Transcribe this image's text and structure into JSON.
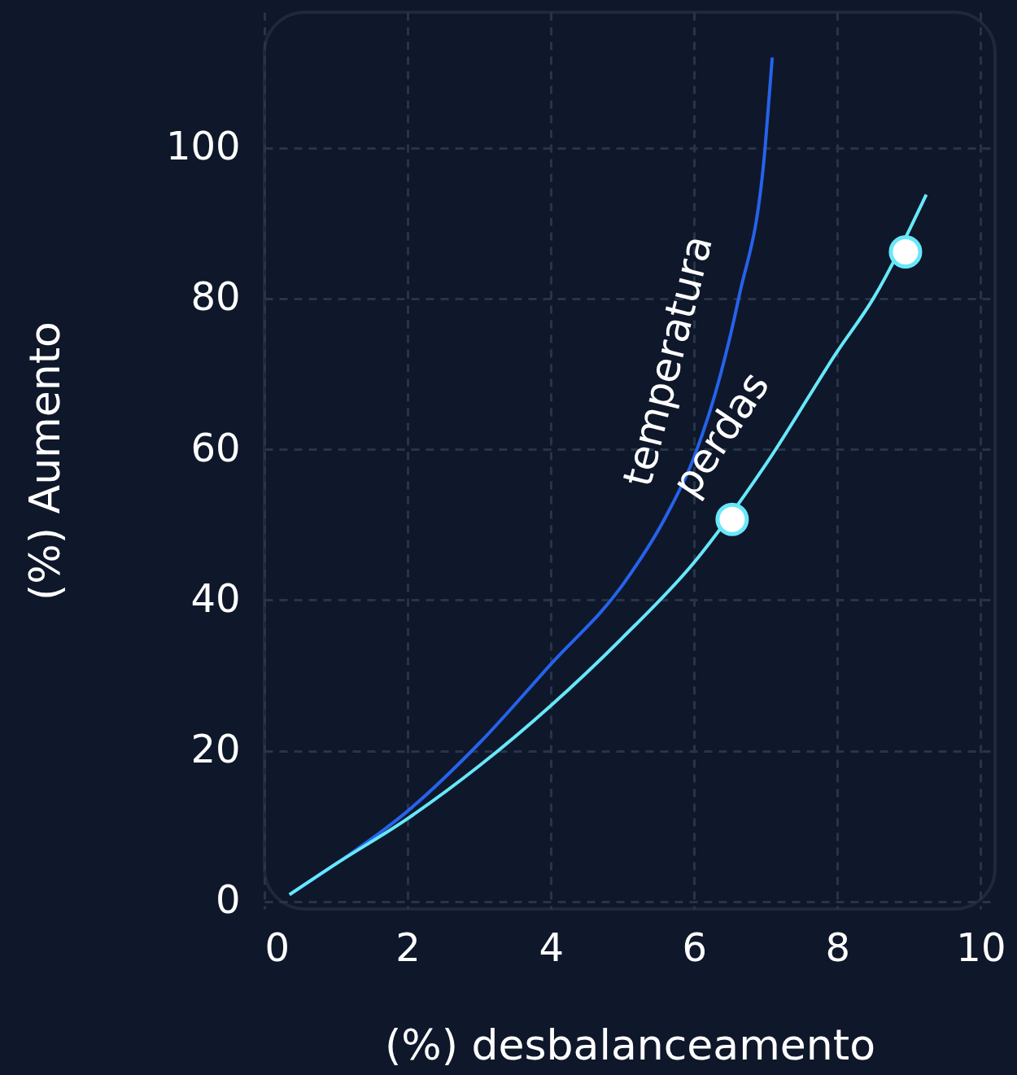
{
  "chart_data": {
    "type": "line",
    "xlabel": "(%) desbalanceamento",
    "ylabel": "(%) Aumento",
    "xlim": [
      0,
      10.2
    ],
    "ylim": [
      -1,
      118
    ],
    "xticks": [
      0,
      2,
      4,
      6,
      8,
      10
    ],
    "yticks": [
      0,
      20,
      40,
      60,
      80,
      100
    ],
    "grid": true,
    "line_style": "solid",
    "series": [
      {
        "name": "temperatura",
        "color": "#2563eb",
        "x": [
          0.35,
          1,
          2,
          3,
          4,
          5,
          5.6,
          6,
          6.37,
          6.62,
          6.99,
          7.09
        ],
        "values": [
          0.9,
          5,
          12,
          21,
          31.5,
          42,
          51,
          59,
          70,
          80,
          100,
          112
        ]
      },
      {
        "name": "perdas",
        "color": "#67e8f9",
        "x": [
          0.35,
          1,
          2,
          3,
          4,
          5,
          6,
          7,
          8,
          8.5,
          9.24
        ],
        "values": [
          0.9,
          5,
          11,
          18,
          26,
          35,
          45,
          58,
          73,
          80,
          93.8
        ]
      },
      {
        "type": "scatter",
        "marker": "circle",
        "color": "#67e8f9",
        "x": [
          6.53,
          8.95
        ],
        "values": [
          50.7,
          86.2
        ]
      }
    ]
  }
}
